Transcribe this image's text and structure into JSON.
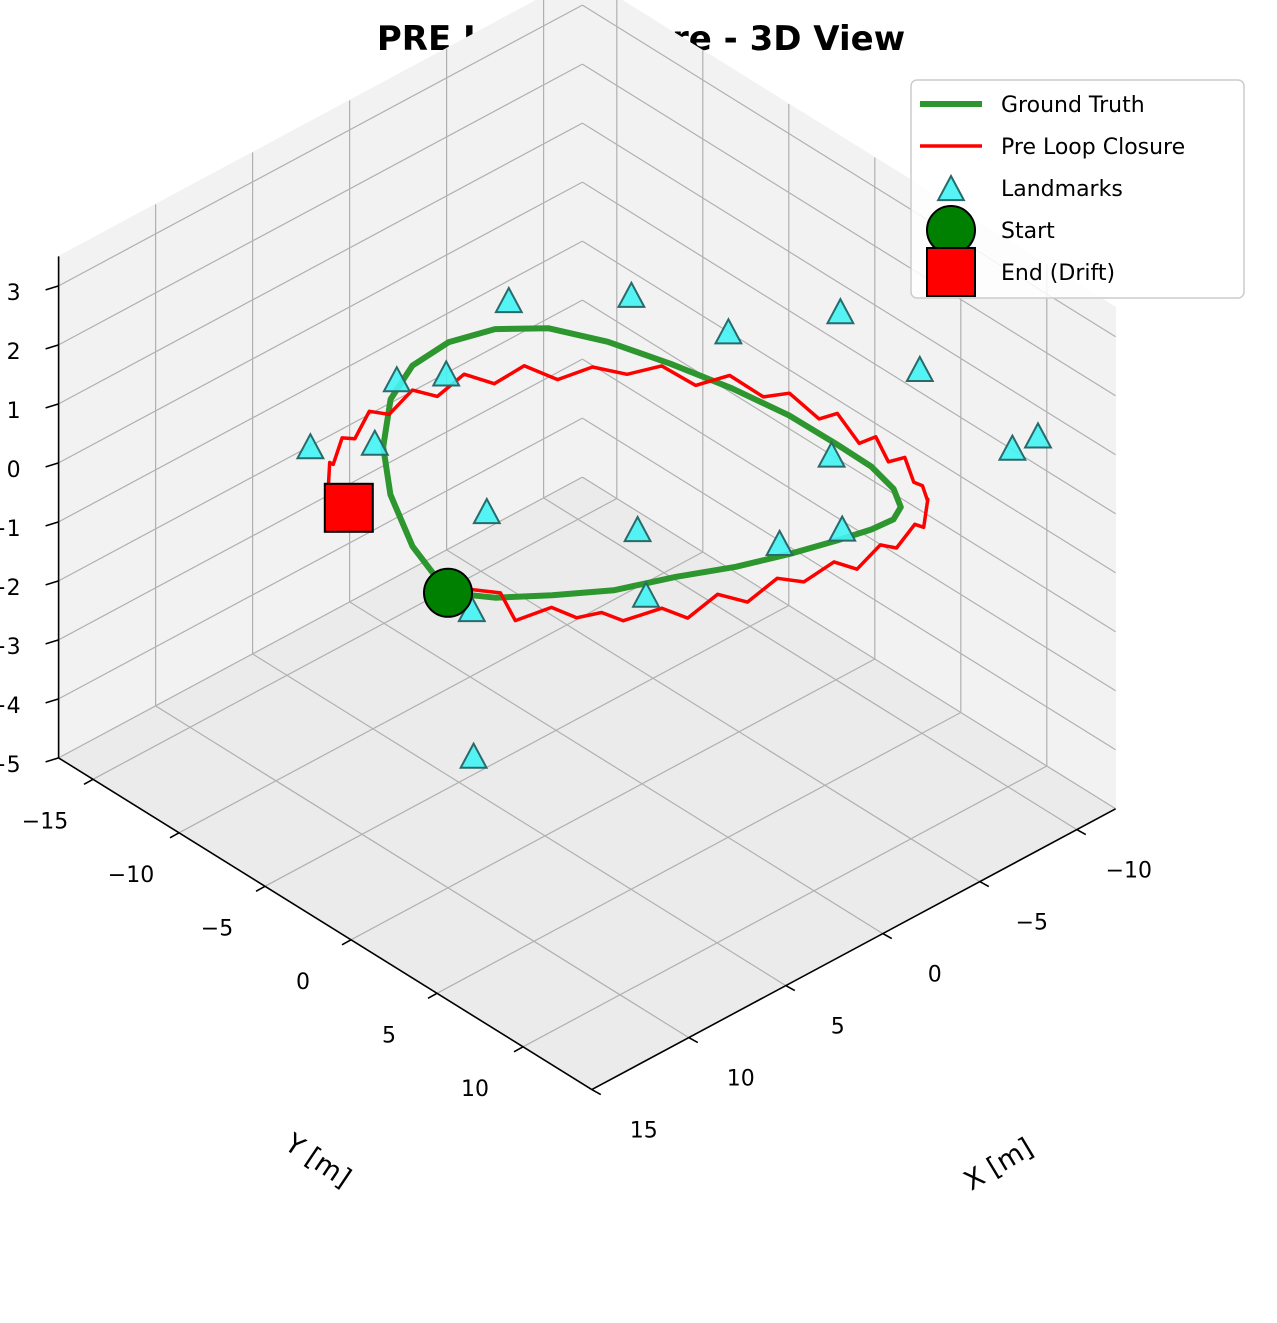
{
  "chart_data": {
    "type": "line",
    "projection": "3d",
    "title": "PRE Loop Closure - 3D View",
    "xlabel": "X [m]",
    "ylabel": "Y [m]",
    "zlabel": "",
    "xlim": [
      -12,
      15
    ],
    "ylim": [
      -17,
      14
    ],
    "zlim": [
      -5,
      3.5
    ],
    "x_ticks": [
      "−10",
      "−5",
      "0",
      "5",
      "10",
      "15"
    ],
    "y_ticks": [
      "−15",
      "−10",
      "−5",
      "0",
      "5",
      "10"
    ],
    "z_ticks": [
      "3",
      "2",
      "1",
      "0",
      "−1",
      "−2",
      "−3",
      "−4",
      "−5"
    ],
    "grid": true,
    "legend_position": "top-right",
    "legend": [
      "Ground Truth",
      "Pre Loop Closure",
      "Landmarks",
      "Start",
      "End (Drift)"
    ],
    "colors": {
      "ground_truth": "#2e962e",
      "pre_loop_closure": "#ff0000",
      "landmarks": "#44f4f4",
      "start": "#008000",
      "end": "#ff0000"
    },
    "series": [
      {
        "name": "Ground Truth",
        "note_values": "ellipse in x-y plane with vertical oscillation",
        "points": [
          [
            10.0,
            0.0,
            0.0
          ],
          [
            9.7,
            2.4,
            0.3
          ],
          [
            8.8,
            4.7,
            0.6
          ],
          [
            7.4,
            6.7,
            0.8
          ],
          [
            5.6,
            8.3,
            1.0
          ],
          [
            3.5,
            9.4,
            1.0
          ],
          [
            1.2,
            9.9,
            0.9
          ],
          [
            -1.2,
            9.9,
            0.7
          ],
          [
            -3.5,
            9.4,
            0.4
          ],
          [
            -5.6,
            8.3,
            0.0
          ],
          [
            -7.4,
            6.7,
            -0.4
          ],
          [
            -8.8,
            4.7,
            -0.7
          ],
          [
            -9.7,
            2.4,
            -0.9
          ],
          [
            -10.0,
            0.0,
            -1.0
          ],
          [
            -9.7,
            -2.4,
            -0.9
          ],
          [
            -8.8,
            -4.7,
            -0.7
          ],
          [
            -7.4,
            -6.7,
            -0.4
          ],
          [
            -5.6,
            -8.3,
            0.0
          ],
          [
            -3.5,
            -9.4,
            0.4
          ],
          [
            -1.2,
            -9.9,
            0.7
          ],
          [
            1.2,
            -9.9,
            0.9
          ],
          [
            3.5,
            -9.4,
            1.0
          ],
          [
            5.6,
            -8.3,
            1.0
          ],
          [
            7.4,
            -6.7,
            0.8
          ],
          [
            8.8,
            -4.7,
            0.6
          ],
          [
            9.7,
            -2.4,
            0.3
          ],
          [
            10.0,
            0.0,
            0.0
          ]
        ]
      },
      {
        "name": "Pre Loop Closure",
        "points": [
          [
            10.0,
            0.0,
            0.0
          ],
          [
            10.1,
            1.2,
            0.3
          ],
          [
            9.6,
            2.6,
            0.4
          ],
          [
            9.9,
            3.8,
            0.2
          ],
          [
            9.1,
            5.0,
            0.5
          ],
          [
            8.6,
            5.9,
            0.4
          ],
          [
            8.2,
            6.9,
            0.6
          ],
          [
            7.7,
            7.6,
            0.5
          ],
          [
            6.6,
            8.6,
            0.7
          ],
          [
            5.8,
            9.2,
            0.5
          ],
          [
            4.7,
            9.7,
            0.8
          ],
          [
            3.7,
            10.3,
            0.6
          ],
          [
            2.6,
            10.8,
            0.9
          ],
          [
            1.5,
            11.1,
            0.7
          ],
          [
            0.3,
            11.5,
            0.9
          ],
          [
            -0.8,
            11.6,
            0.6
          ],
          [
            -2.0,
            11.6,
            0.8
          ],
          [
            -3.1,
            11.3,
            0.5
          ],
          [
            -4.4,
            10.9,
            0.6
          ],
          [
            -5.3,
            10.4,
            0.3
          ],
          [
            -6.4,
            9.4,
            0.4
          ],
          [
            -7.1,
            8.6,
            0.1
          ],
          [
            -7.9,
            7.4,
            0.0
          ],
          [
            -8.6,
            6.1,
            -0.3
          ],
          [
            -9.2,
            4.9,
            -0.2
          ],
          [
            -9.6,
            3.5,
            -0.6
          ],
          [
            -10.1,
            2.2,
            -0.5
          ],
          [
            -10.4,
            0.9,
            -0.9
          ],
          [
            -10.6,
            -0.6,
            -0.7
          ],
          [
            -10.9,
            -2.0,
            -1.1
          ],
          [
            -10.7,
            -3.5,
            -0.9
          ],
          [
            -10.6,
            -4.9,
            -1.2
          ],
          [
            -10.1,
            -6.3,
            -1.0
          ],
          [
            -9.5,
            -7.6,
            -1.3
          ],
          [
            -8.9,
            -8.9,
            -1.1
          ],
          [
            -8.1,
            -10.0,
            -1.3
          ],
          [
            -7.2,
            -11.0,
            -1.2
          ],
          [
            -6.2,
            -11.9,
            -1.4
          ],
          [
            -5.1,
            -12.6,
            -1.1
          ],
          [
            -4.0,
            -13.1,
            -1.3
          ],
          [
            -2.8,
            -13.5,
            -1.0
          ],
          [
            -1.6,
            -13.7,
            -1.2
          ],
          [
            -0.4,
            -13.8,
            -0.9
          ],
          [
            0.8,
            -13.8,
            -1.1
          ],
          [
            2.0,
            -13.6,
            -0.8
          ],
          [
            3.1,
            -13.2,
            -1.0
          ],
          [
            4.2,
            -12.7,
            -0.7
          ],
          [
            5.1,
            -12.2,
            -0.9
          ],
          [
            5.9,
            -11.5,
            -0.6
          ],
          [
            6.6,
            -10.8,
            -0.8
          ],
          [
            7.0,
            -10.2,
            -0.6
          ],
          [
            6.6,
            -9.6,
            -0.9
          ]
        ]
      }
    ],
    "landmarks": [
      [
        -12.0,
        8.0,
        0.0
      ],
      [
        -12.0,
        -2.0,
        0.5
      ],
      [
        -8.0,
        14.0,
        2.0
      ],
      [
        14.0,
        6.0,
        -1.0
      ],
      [
        -5.0,
        6.0,
        -0.5
      ],
      [
        3.0,
        -8.0,
        1.0
      ],
      [
        -3.0,
        -4.0,
        2.0
      ],
      [
        -9.0,
        6.0,
        1.5
      ],
      [
        -8.0,
        2.0,
        -0.5
      ],
      [
        0.0,
        8.0,
        0.5
      ],
      [
        7.0,
        -2.0,
        -1.2
      ],
      [
        -8.0,
        -4.0,
        0.5
      ],
      [
        8.0,
        0.0,
        1.0
      ],
      [
        6.0,
        7.0,
        0.5
      ],
      [
        2.0,
        2.0,
        0.0
      ],
      [
        12.0,
        -2.0,
        2.5
      ],
      [
        -2.0,
        -10.0,
        1.0
      ],
      [
        10.0,
        -8.0,
        1.0
      ],
      [
        2.0,
        -12.0,
        0.0
      ],
      [
        -12.0,
        5.0,
        3.0
      ]
    ],
    "start": [
      10.0,
      0.0,
      0.0
    ],
    "end": [
      6.6,
      -9.6,
      -0.9
    ]
  }
}
